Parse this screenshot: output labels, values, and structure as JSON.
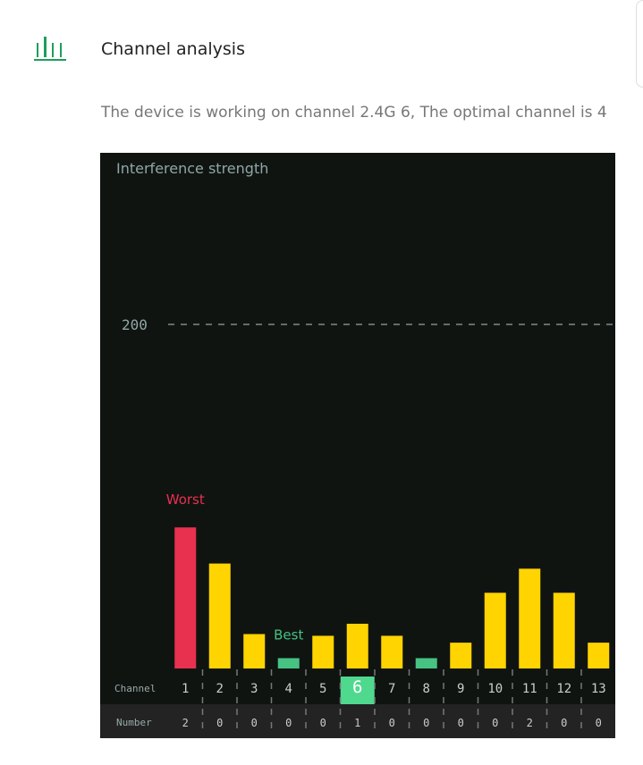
{
  "header": {
    "title": "Channel analysis",
    "icon": "bar-chart-icon",
    "description": "The device is working on channel  2.4G 6,  The optimal channel is  4"
  },
  "colors": {
    "accent": "#1e9e5a",
    "worst": "#e8304f",
    "best": "#46c283",
    "normal": "#ffd400",
    "current": "#4fd98e"
  },
  "chart_data": {
    "type": "bar",
    "ylabel": "Interference strength",
    "yticks": [
      200
    ],
    "ylim": [
      0,
      230
    ],
    "grid": "dashed line at 200",
    "categories": [
      "1",
      "2",
      "3",
      "4",
      "5",
      "6",
      "7",
      "8",
      "9",
      "10",
      "11",
      "12",
      "13"
    ],
    "values": [
      82,
      61,
      20,
      6,
      19,
      26,
      19,
      6,
      15,
      44,
      58,
      44,
      15
    ],
    "number_row": [
      "2",
      "0",
      "0",
      "0",
      "0",
      "1",
      "0",
      "0",
      "0",
      "0",
      "2",
      "0",
      "0"
    ],
    "row_labels": {
      "channel": "Channel",
      "number": "Number"
    },
    "annotations": {
      "worst": {
        "label": "Worst",
        "channel": "1"
      },
      "best": {
        "label": "Best",
        "channel": "4"
      }
    },
    "current_channel": "6"
  }
}
